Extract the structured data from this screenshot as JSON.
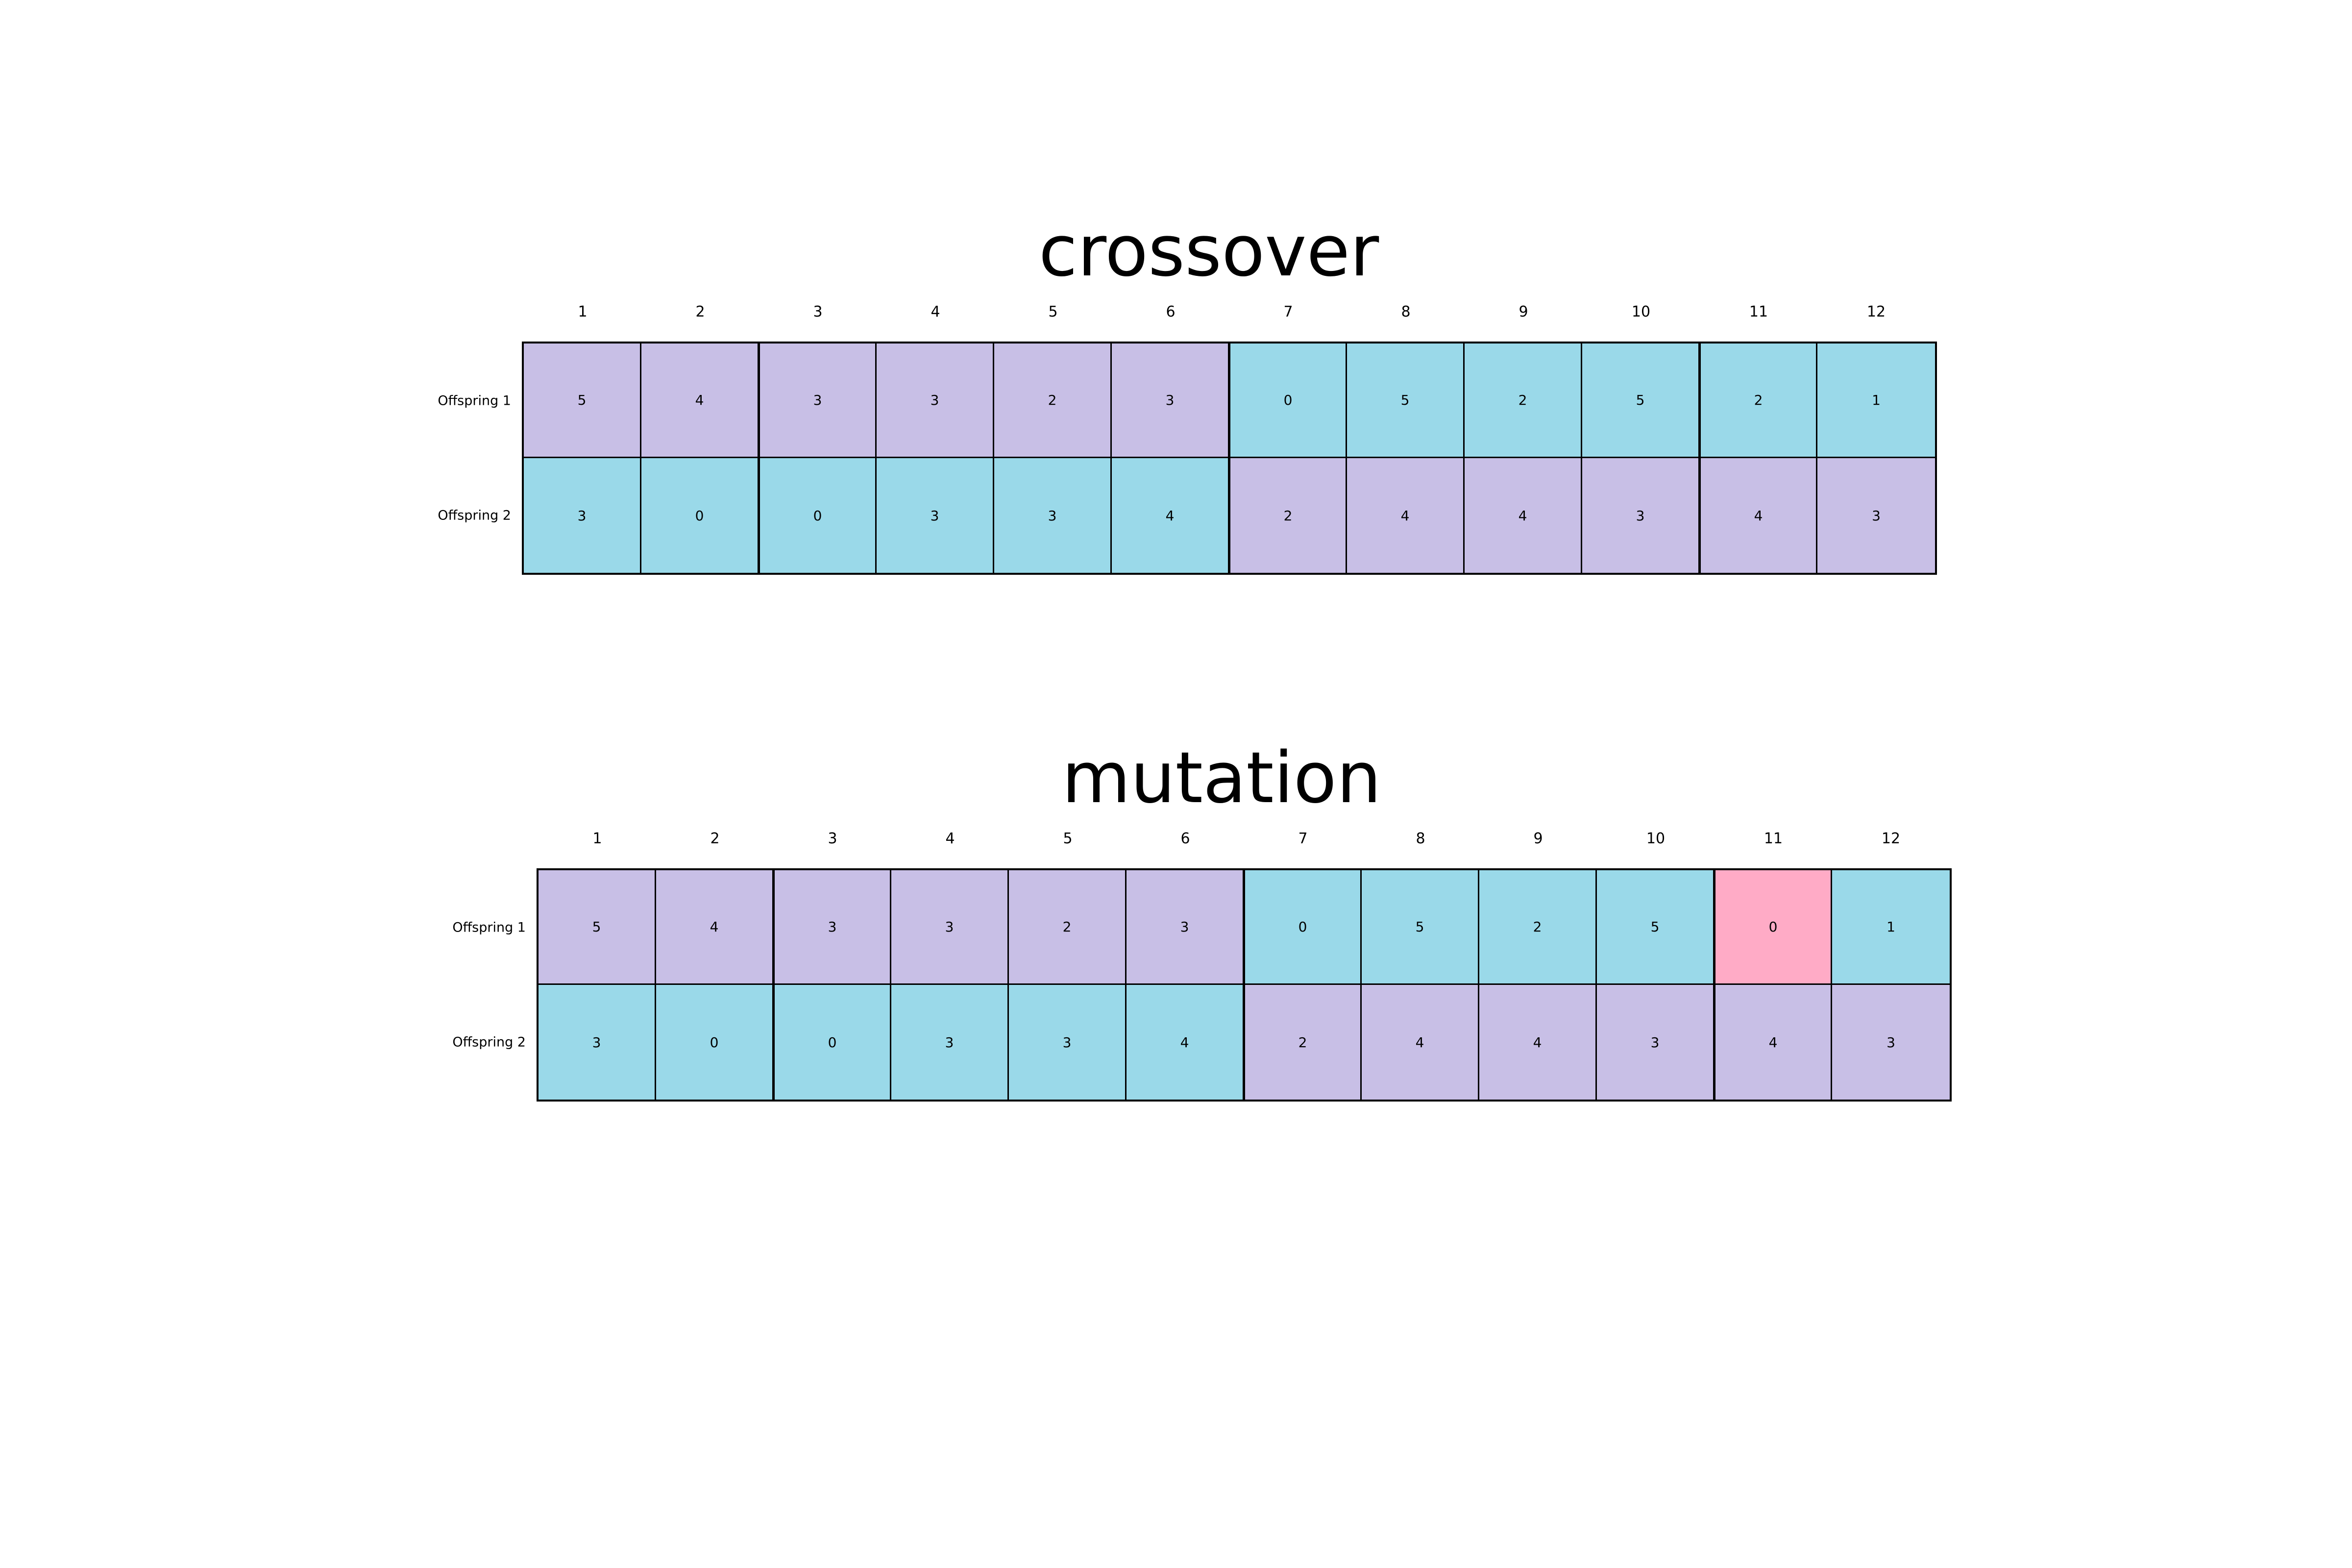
{
  "colors": {
    "parent_a": "#c8bfe6",
    "parent_b": "#9ad9e9",
    "mutated": "#ffabc6",
    "border": "#000000"
  },
  "panels": [
    {
      "title": "crossover",
      "columns": [
        "1",
        "2",
        "3",
        "4",
        "5",
        "6",
        "7",
        "8",
        "9",
        "10",
        "11",
        "12"
      ],
      "rows": [
        {
          "label": "Offspring 1",
          "values": [
            "5",
            "4",
            "3",
            "3",
            "2",
            "3",
            "0",
            "5",
            "2",
            "5",
            "2",
            "1"
          ],
          "colors": [
            "parent_a",
            "parent_a",
            "parent_a",
            "parent_a",
            "parent_a",
            "parent_a",
            "parent_b",
            "parent_b",
            "parent_b",
            "parent_b",
            "parent_b",
            "parent_b"
          ]
        },
        {
          "label": "Offspring 2",
          "values": [
            "3",
            "0",
            "0",
            "3",
            "3",
            "4",
            "2",
            "4",
            "4",
            "3",
            "4",
            "3"
          ],
          "colors": [
            "parent_b",
            "parent_b",
            "parent_b",
            "parent_b",
            "parent_b",
            "parent_b",
            "parent_a",
            "parent_a",
            "parent_a",
            "parent_a",
            "parent_a",
            "parent_a"
          ]
        }
      ]
    },
    {
      "title": "mutation",
      "columns": [
        "1",
        "2",
        "3",
        "4",
        "5",
        "6",
        "7",
        "8",
        "9",
        "10",
        "11",
        "12"
      ],
      "rows": [
        {
          "label": "Offspring 1",
          "values": [
            "5",
            "4",
            "3",
            "3",
            "2",
            "3",
            "0",
            "5",
            "2",
            "5",
            "0",
            "1"
          ],
          "colors": [
            "parent_a",
            "parent_a",
            "parent_a",
            "parent_a",
            "parent_a",
            "parent_a",
            "parent_b",
            "parent_b",
            "parent_b",
            "parent_b",
            "mutated",
            "parent_b"
          ]
        },
        {
          "label": "Offspring 2",
          "values": [
            "3",
            "0",
            "0",
            "3",
            "3",
            "4",
            "2",
            "4",
            "4",
            "3",
            "4",
            "3"
          ],
          "colors": [
            "parent_b",
            "parent_b",
            "parent_b",
            "parent_b",
            "parent_b",
            "parent_b",
            "parent_a",
            "parent_a",
            "parent_a",
            "parent_a",
            "parent_a",
            "parent_a"
          ]
        }
      ]
    }
  ]
}
